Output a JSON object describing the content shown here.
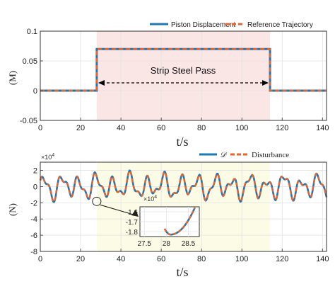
{
  "chart_data": [
    {
      "type": "line",
      "ylabel": "(M)",
      "xlabel": "t/s",
      "xlim": [
        0,
        142
      ],
      "ylim": [
        -0.05,
        0.1
      ],
      "xticks": [
        "0",
        "20",
        "40",
        "60",
        "80",
        "100",
        "120",
        "140"
      ],
      "yticks": [
        "0.1",
        "0.05",
        "0",
        "-0.05"
      ],
      "shaded_region": {
        "x": [
          28,
          114
        ],
        "color": "#fbe6e6"
      },
      "annotation": "Strip Steel Pass",
      "legend_position": "top-right",
      "series": [
        {
          "name": "Piston Displacement",
          "color": "#1f77b4",
          "style": "solid",
          "points": [
            [
              0,
              0
            ],
            [
              28,
              0
            ],
            [
              28,
              0.07
            ],
            [
              114,
              0.07
            ],
            [
              114,
              0
            ],
            [
              142,
              0
            ]
          ]
        },
        {
          "name": "Reference Trajectory",
          "color": "#e8642a",
          "style": "dashed",
          "points": [
            [
              0,
              0
            ],
            [
              28,
              0
            ],
            [
              28,
              0.07
            ],
            [
              114,
              0.07
            ],
            [
              114,
              0
            ],
            [
              142,
              0
            ]
          ]
        }
      ]
    },
    {
      "type": "line",
      "ylabel": "(N)",
      "xlabel": "t/s",
      "y_exponent": "×10",
      "y_exponent_power": "4",
      "xlim": [
        0,
        142
      ],
      "ylim": [
        -8,
        3
      ],
      "xticks": [
        "0",
        "20",
        "40",
        "60",
        "80",
        "100",
        "120",
        "140"
      ],
      "yticks": [
        "2",
        "0",
        "-2",
        "-4",
        "-6",
        "-8"
      ],
      "shaded_region": {
        "x": [
          28,
          114
        ],
        "color": "#fbfbe6"
      },
      "legend_position": "top-right",
      "series": [
        {
          "name": "𝒟",
          "color": "#1f77b4",
          "style": "solid"
        },
        {
          "name": "Disturbance",
          "color": "#e8642a",
          "style": "dashed"
        }
      ],
      "signal": {
        "components": [
          [
            1.1,
            0.74,
            0.0
          ],
          [
            0.55,
            1.43,
            1.1
          ],
          [
            0.35,
            0.41,
            2.3
          ]
        ],
        "step": 0.25
      },
      "inset": {
        "x_range": [
          27.4,
          28.75
        ],
        "y_range": [
          -1.85,
          -1.55
        ],
        "xticks": [
          "27.5",
          "28",
          "28.5"
        ],
        "yticks": [
          "-1.6",
          "-1.7",
          "-1.8"
        ],
        "y_exponent": "×10",
        "y_exponent_power": "4",
        "zoom_point": [
          28.0,
          -1.83
        ]
      }
    }
  ]
}
